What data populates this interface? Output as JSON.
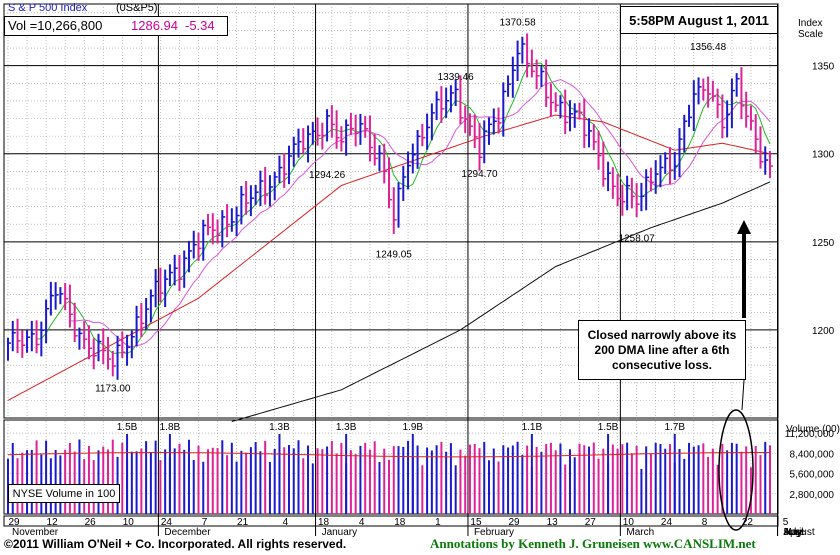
{
  "header": {
    "index_name": "S & P 500 Index",
    "symbol": "(0S&P5)",
    "vol_label": "Vol =10,266,800",
    "price": "1286.94",
    "change": "-5.34",
    "price_color": "#cc0099",
    "index_scale_label": "Index\nScale"
  },
  "stamp": "5:58PM August 1, 2011",
  "callout": "Closed narrowly above its 200 DMA line after a 6th consecutive loss.",
  "volume_legend": "NYSE Volume in 100",
  "volume_axis_label": "Volume (00)",
  "footer": {
    "copyright": "©2011 William O'Neil + Co. Incorporated. All rights reserved.",
    "annotation": "Annotations by Kenneth J. Gruneisen  www.CANSLIM.net"
  },
  "colors": {
    "up": "#1a1acc",
    "down": "#dd2299",
    "ma10": "#22bb22",
    "ma21": "#dd55dd",
    "ma50": "#dd2222",
    "ma200": "#111111"
  },
  "chart_data": {
    "type": "line",
    "price_axis": {
      "ylim": [
        1150,
        1385
      ],
      "ticks": [
        1200,
        1250,
        1300,
        1350
      ]
    },
    "volume_axis": {
      "ylim": [
        0,
        13000000
      ],
      "ticks": [
        "11,200,000",
        "8,400,000",
        "5,600,000",
        "2,800,000"
      ],
      "tick_values": [
        11200000,
        8400000,
        5600000,
        2800000
      ]
    },
    "x_ticks": [
      "29",
      "12",
      "26",
      "10",
      "24",
      "7",
      "21",
      "4",
      "18",
      "4",
      "18",
      "1",
      "15",
      "29",
      "13",
      "27",
      "10",
      "24",
      "8",
      "22",
      "5"
    ],
    "month_labels": [
      "November",
      "December",
      "January",
      "February",
      "March",
      "April",
      "May",
      "June",
      "July",
      "August"
    ],
    "month_label_offsets": [
      0,
      4,
      8,
      12,
      16,
      21,
      25,
      30,
      34,
      41
    ],
    "price_annotations": [
      {
        "label": "1173.00",
        "value": 1173.0,
        "point": 22
      },
      {
        "label": "1294.26",
        "value": 1294.26,
        "point": 67
      },
      {
        "label": "1249.05",
        "value": 1249.05,
        "point": 81
      },
      {
        "label": "1339.46",
        "value": 1339.46,
        "point": 94
      },
      {
        "label": "1294.70",
        "value": 1294.7,
        "point": 99
      },
      {
        "label": "1370.58",
        "value": 1370.58,
        "point": 107
      },
      {
        "label": "1258.07",
        "value": 1258.07,
        "point": 132
      },
      {
        "label": "1356.48",
        "value": 1356.48,
        "point": 147
      }
    ],
    "volume_annotations": [
      {
        "label": "1.5B",
        "point": 25
      },
      {
        "label": "1.8B",
        "point": 34
      },
      {
        "label": "1.3B",
        "point": 57
      },
      {
        "label": "1.3B",
        "point": 71
      },
      {
        "label": "1.9B",
        "point": 85
      },
      {
        "label": "1.1B",
        "point": 110
      },
      {
        "label": "1.5B",
        "point": 126
      },
      {
        "label": "1.7B",
        "point": 140
      }
    ],
    "anchors": [
      [
        0,
        1190
      ],
      [
        6,
        1198
      ],
      [
        10,
        1222
      ],
      [
        15,
        1198
      ],
      [
        22,
        1180
      ],
      [
        26,
        1200
      ],
      [
        34,
        1232
      ],
      [
        42,
        1255
      ],
      [
        52,
        1276
      ],
      [
        60,
        1300
      ],
      [
        67,
        1320
      ],
      [
        70,
        1306
      ],
      [
        74,
        1318
      ],
      [
        78,
        1298
      ],
      [
        81,
        1262
      ],
      [
        84,
        1298
      ],
      [
        88,
        1318
      ],
      [
        94,
        1335
      ],
      [
        99,
        1302
      ],
      [
        103,
        1322
      ],
      [
        107,
        1362
      ],
      [
        110,
        1346
      ],
      [
        114,
        1332
      ],
      [
        120,
        1318
      ],
      [
        124,
        1300
      ],
      [
        128,
        1276
      ],
      [
        132,
        1272
      ],
      [
        136,
        1294
      ],
      [
        140,
        1292
      ],
      [
        144,
        1336
      ],
      [
        147,
        1340
      ],
      [
        150,
        1314
      ],
      [
        153,
        1340
      ],
      [
        156,
        1318
      ],
      [
        158,
        1300
      ],
      [
        160,
        1287
      ]
    ],
    "ma_series": [
      {
        "name": "10dma",
        "color_key": "ma10",
        "lag": 6
      },
      {
        "name": "21dma",
        "color_key": "ma21",
        "lag": 13
      },
      {
        "name": "50dma",
        "color_key": "ma50",
        "anchors": [
          [
            0,
            1160
          ],
          [
            40,
            1218
          ],
          [
            70,
            1282
          ],
          [
            100,
            1310
          ],
          [
            115,
            1322
          ],
          [
            125,
            1318
          ],
          [
            140,
            1302
          ],
          [
            150,
            1306
          ],
          [
            160,
            1300
          ]
        ]
      },
      {
        "name": "200dma",
        "color_key": "ma200",
        "anchors": [
          [
            47,
            1148
          ],
          [
            70,
            1166
          ],
          [
            95,
            1200
          ],
          [
            115,
            1236
          ],
          [
            135,
            1258
          ],
          [
            150,
            1272
          ],
          [
            160,
            1284
          ]
        ]
      }
    ]
  }
}
